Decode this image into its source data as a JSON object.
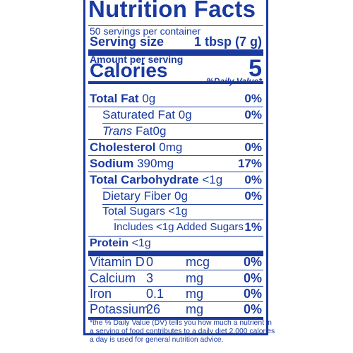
{
  "title": "Nutrition Facts",
  "servings_per_container": "50 servings per container",
  "serving_size_label": "Serving size",
  "serving_size_value": "1 tbsp (7 g)",
  "amount_per_serving": "Amount per serving",
  "calories_label": "Calories",
  "calories_value": "5",
  "daily_value_header": "%Daily Value*",
  "rows": [
    {
      "label": "Total Fat",
      "amount": "0g",
      "dv": "0%"
    },
    {
      "label": "Saturated Fat",
      "amount": "0g",
      "dv": "0%"
    },
    {
      "label_italic": "Trans",
      "label": "Fat",
      "amount": "0g",
      "dv": ""
    },
    {
      "label": "Cholesterol",
      "amount": "0mg",
      "dv": "0%"
    },
    {
      "label": "Sodium",
      "amount": "390mg",
      "dv": "17%"
    },
    {
      "label": "Total Carbohydrate",
      "amount": "<1g",
      "dv": "0%"
    },
    {
      "label": "Dietary Fiber",
      "amount": "0g",
      "dv": "0%"
    },
    {
      "label": "Total Sugars",
      "amount": "<1g",
      "dv": ""
    },
    {
      "label": "Includes <1g Added Sugars",
      "amount": "",
      "dv": "1%"
    },
    {
      "label": "Protein",
      "amount": "<1g",
      "dv": ""
    }
  ],
  "vitamins": [
    {
      "name": "Vitamin D",
      "amount": "0",
      "unit": "mcg",
      "dv": "0%"
    },
    {
      "name": "Calcium",
      "amount": "3",
      "unit": "mg",
      "dv": "0%"
    },
    {
      "name": "Iron",
      "amount": "0.1",
      "unit": "mg",
      "dv": "0%"
    },
    {
      "name": "Potassium",
      "amount": "26",
      "unit": "mg",
      "dv": "0%"
    }
  ],
  "footnote_lines": [
    "*the % Daily Value (DV) tells you how much a nutrient in",
    "a serving of food contributes to a daily diet 2,000 calories",
    "a day is used for general nutrition advice."
  ],
  "colors": {
    "ink": "#1a3aa0",
    "background": "#ffffff"
  }
}
